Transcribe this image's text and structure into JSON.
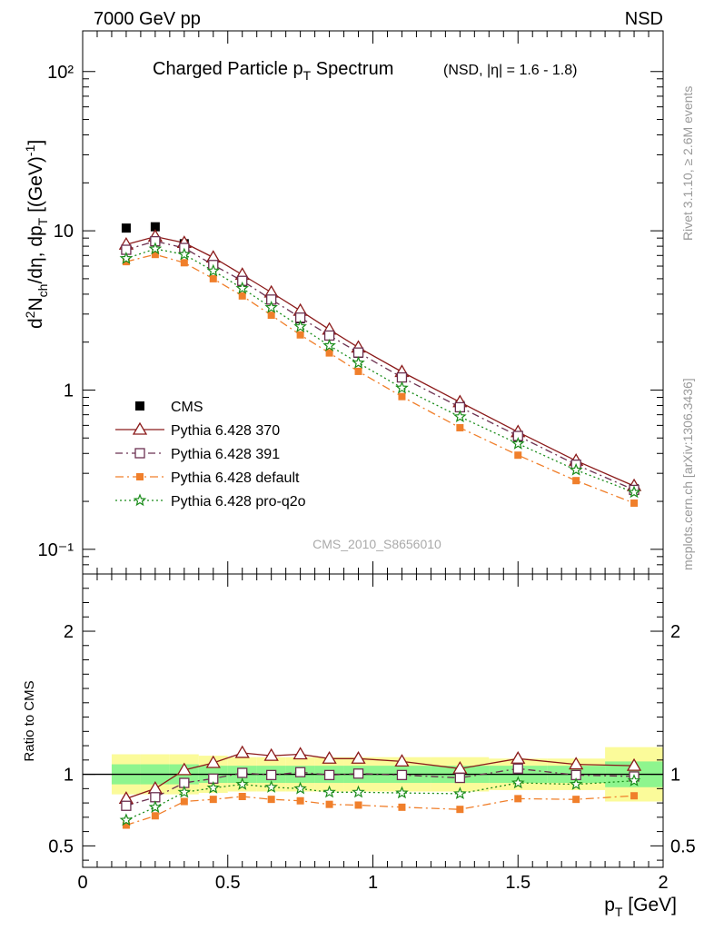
{
  "header": {
    "left": "7000 GeV pp",
    "right": "NSD"
  },
  "title": {
    "main": "Charged Particle p",
    "main_sub": "T",
    "main_tail": " Spectrum",
    "small": "(NSD, |η| = 1.6 - 1.8)"
  },
  "side_labels": {
    "rivet": "Rivet 3.1.10, ≥ 2.6M events",
    "mcplots": "mcplots.cern.ch [arXiv:1306.3436]"
  },
  "watermark": "CMS_2010_S8656010",
  "ylabel_top": "d²N_ch/dη, dp_T [(GeV)⁻¹]",
  "ylabel_bottom": "Ratio to CMS",
  "xlabel": "p_T [GeV]",
  "colors": {
    "cms": "#000000",
    "p370": "#8b1a1a",
    "p391": "#6b3050",
    "pdefault": "#f07f2b",
    "pq2o": "#1a8c1a",
    "band_inner": "#8ef58e",
    "band_outer": "#fbfb9a"
  },
  "chart_data": [
    {
      "type": "scatter",
      "panel": "main",
      "yscale": "log",
      "xlim": [
        0,
        2
      ],
      "ylim": [
        0.07,
        180
      ],
      "ytick_labels": [
        "10⁻¹",
        "1",
        "10",
        "10²"
      ],
      "x": [
        0.15,
        0.25,
        0.35,
        0.45,
        0.55,
        0.65,
        0.75,
        0.85,
        0.95,
        1.1,
        1.3,
        1.5,
        1.7,
        1.9
      ],
      "series": [
        {
          "name": "CMS",
          "key": "cms",
          "style": "data",
          "values": [
            10.4,
            10.6,
            8.3,
            6.3,
            4.8,
            3.7,
            2.8,
            2.2,
            1.7,
            1.2,
            0.8,
            0.5,
            0.34,
            0.24
          ]
        },
        {
          "name": "Pythia 6.428 370",
          "key": "p370",
          "style": "solid",
          "values": [
            8.2,
            9.2,
            8.4,
            6.8,
            5.3,
            4.1,
            3.15,
            2.4,
            1.85,
            1.3,
            0.84,
            0.545,
            0.36,
            0.25
          ]
        },
        {
          "name": "Pythia 6.428 391",
          "key": "p391",
          "style": "dashdot",
          "values": [
            7.6,
            8.6,
            7.8,
            6.1,
            4.85,
            3.7,
            2.85,
            2.2,
            1.72,
            1.2,
            0.78,
            0.515,
            0.34,
            0.236
          ]
        },
        {
          "name": "Pythia 6.428 default",
          "key": "pdefault",
          "style": "dashdot2",
          "values": [
            6.4,
            7.1,
            6.3,
            5.0,
            3.9,
            2.95,
            2.22,
            1.71,
            1.31,
            0.91,
            0.58,
            0.39,
            0.27,
            0.195
          ]
        },
        {
          "name": "Pythia 6.428 pro-q2o",
          "key": "pq2o",
          "style": "dotted",
          "values": [
            6.7,
            7.7,
            7.1,
            5.6,
            4.35,
            3.3,
            2.5,
            1.9,
            1.48,
            1.03,
            0.68,
            0.46,
            0.315,
            0.228
          ]
        }
      ]
    },
    {
      "type": "line",
      "panel": "ratio",
      "xlim": [
        0,
        2
      ],
      "ylim": [
        0.35,
        2.4
      ],
      "ytick_labels": [
        "0.5",
        "1",
        "2"
      ],
      "xtick_labels": [
        "0",
        "0.5",
        "1",
        "1.5",
        "2"
      ],
      "x": [
        0.15,
        0.25,
        0.35,
        0.45,
        0.55,
        0.65,
        0.75,
        0.85,
        0.95,
        1.1,
        1.3,
        1.5,
        1.7,
        1.9
      ],
      "bands": {
        "edges": [
          0.1,
          0.2,
          0.3,
          0.4,
          0.5,
          0.6,
          0.7,
          0.8,
          0.9,
          1.0,
          1.2,
          1.4,
          1.6,
          1.8,
          2.0
        ],
        "outer": [
          0.14,
          0.14,
          0.14,
          0.13,
          0.12,
          0.12,
          0.12,
          0.12,
          0.12,
          0.12,
          0.12,
          0.11,
          0.11,
          0.19
        ],
        "inner": [
          0.07,
          0.07,
          0.07,
          0.06,
          0.06,
          0.06,
          0.06,
          0.06,
          0.06,
          0.06,
          0.06,
          0.06,
          0.06,
          0.09
        ]
      },
      "series": [
        {
          "name": "Pythia 6.428 370",
          "key": "p370",
          "style": "solid",
          "values": [
            0.83,
            0.9,
            1.03,
            1.08,
            1.15,
            1.13,
            1.14,
            1.11,
            1.11,
            1.09,
            1.04,
            1.11,
            1.07,
            1.06
          ]
        },
        {
          "name": "Pythia 6.428 391",
          "key": "p391",
          "style": "dashdot",
          "values": [
            0.78,
            0.84,
            0.94,
            0.97,
            1.01,
            0.995,
            1.015,
            0.995,
            1.005,
            0.995,
            0.975,
            1.04,
            0.995,
            0.985
          ]
        },
        {
          "name": "Pythia 6.428 default",
          "key": "pdefault",
          "style": "dashdot2",
          "values": [
            0.645,
            0.71,
            0.81,
            0.825,
            0.845,
            0.825,
            0.815,
            0.79,
            0.785,
            0.77,
            0.755,
            0.83,
            0.825,
            0.85
          ]
        },
        {
          "name": "Pythia 6.428 pro-q2o",
          "key": "pq2o",
          "style": "dotted",
          "values": [
            0.68,
            0.77,
            0.875,
            0.905,
            0.93,
            0.91,
            0.9,
            0.875,
            0.875,
            0.87,
            0.865,
            0.94,
            0.93,
            0.955
          ]
        }
      ]
    }
  ]
}
